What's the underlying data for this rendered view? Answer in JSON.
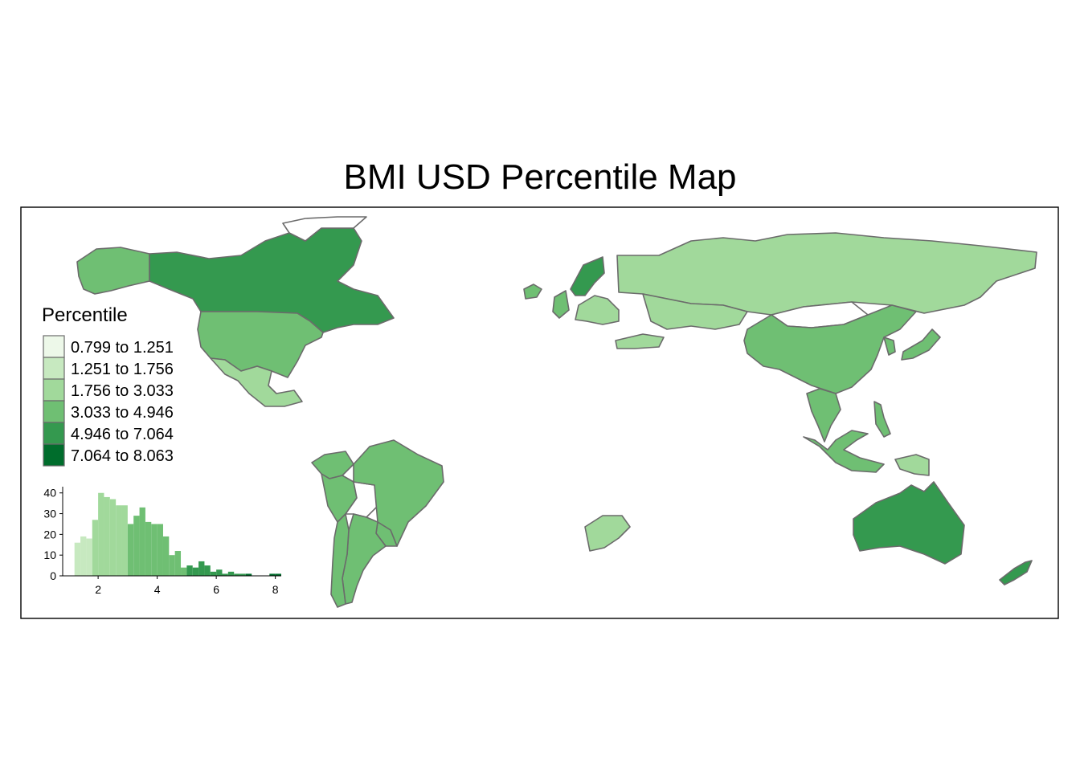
{
  "title": "BMI USD Percentile Map",
  "legend": {
    "title": "Percentile",
    "classes": [
      {
        "label": "0.799 to 1.251",
        "color": "#edf8e9"
      },
      {
        "label": "1.251 to 1.756",
        "color": "#c7e9c0"
      },
      {
        "label": "1.756 to 3.033",
        "color": "#a1d99b"
      },
      {
        "label": "3.033 to 4.946",
        "color": "#6fbf73"
      },
      {
        "label": "4.946 to 7.064",
        "color": "#34994f"
      },
      {
        "label": "7.064 to 8.063",
        "color": "#006d2c"
      }
    ]
  },
  "regions": [
    {
      "name": "Alaska",
      "class": 3
    },
    {
      "name": "Canada",
      "class": 4
    },
    {
      "name": "Greenland",
      "class": null
    },
    {
      "name": "United States",
      "class": 3
    },
    {
      "name": "Mexico",
      "class": 2
    },
    {
      "name": "Brazil",
      "class": 3
    },
    {
      "name": "Colombia",
      "class": 3
    },
    {
      "name": "Peru",
      "class": 3
    },
    {
      "name": "Bolivia",
      "class": null
    },
    {
      "name": "Argentina",
      "class": 3
    },
    {
      "name": "Chile",
      "class": 3
    },
    {
      "name": "Uruguay",
      "class": 3
    },
    {
      "name": "Iceland",
      "class": 3
    },
    {
      "name": "United Kingdom",
      "class": 3
    },
    {
      "name": "Scandinavia",
      "class": 4
    },
    {
      "name": "Europe",
      "class": 2
    },
    {
      "name": "Turkey",
      "class": 2
    },
    {
      "name": "Russia",
      "class": 2
    },
    {
      "name": "Kazakhstan",
      "class": 2
    },
    {
      "name": "Mongolia",
      "class": null
    },
    {
      "name": "China",
      "class": 3
    },
    {
      "name": "Korea",
      "class": 3
    },
    {
      "name": "Japan",
      "class": 3
    },
    {
      "name": "Southeast Asia",
      "class": 3
    },
    {
      "name": "Indonesia",
      "class": 3
    },
    {
      "name": "Philippines",
      "class": 3
    },
    {
      "name": "Papua New Guinea",
      "class": 2
    },
    {
      "name": "South Africa",
      "class": 2
    },
    {
      "name": "Australia",
      "class": 4
    },
    {
      "name": "New Zealand",
      "class": 4
    }
  ],
  "histogram": {
    "x_ticks": [
      "2",
      "4",
      "6",
      "8"
    ],
    "y_ticks": [
      "0",
      "10",
      "20",
      "30",
      "40"
    ],
    "x_range": [
      0.8,
      8.2
    ],
    "y_range": [
      0,
      43
    ],
    "bin_start": 1.2,
    "bin_width": 0.2,
    "counts": [
      16,
      19,
      18,
      27,
      40,
      38,
      37,
      34,
      34,
      25,
      29,
      33,
      26,
      25,
      25,
      19,
      10,
      12,
      4,
      5,
      4,
      7,
      5,
      2,
      3,
      1,
      2,
      1,
      1,
      1,
      0,
      0,
      0,
      1,
      1
    ]
  }
}
